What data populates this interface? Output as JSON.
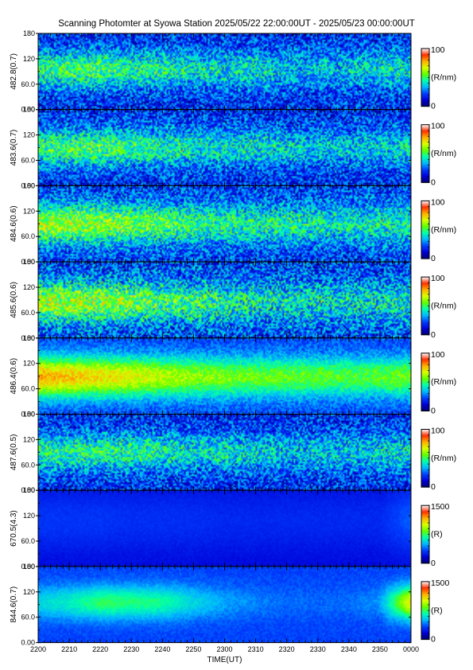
{
  "title": "Scanning Photomter at Syowa Station 2025/05/22 22:00:00UT - 2025/05/23 00:00:00UT",
  "colors": {
    "background": "#ffffff",
    "colormap": [
      "#000070",
      "#0000d8",
      "#0040ff",
      "#00b8ff",
      "#00ffb0",
      "#60ff00",
      "#d8ff00",
      "#ffb000",
      "#ff3000",
      "#ffffff"
    ]
  },
  "chart_data": {
    "type": "heatmap",
    "xlabel": "TIME(UT)",
    "x_ticks": [
      "2200",
      "2210",
      "2220",
      "2230",
      "2240",
      "2250",
      "2300",
      "2310",
      "2320",
      "2330",
      "2340",
      "2350",
      "0000"
    ],
    "panels": [
      {
        "ylabel": "482.8(0.7)",
        "y_ticks": [
          "0.00",
          "60.0",
          "120",
          "180"
        ],
        "ylim": [
          0,
          180
        ],
        "colorbar": {
          "min_label": "0",
          "max_label": "100",
          "unit": "(R/nm)"
        },
        "peak_elevation": 95,
        "band_width": 45,
        "trend": [
          0.45,
          0.5,
          0.5,
          0.45,
          0.45,
          0.4,
          0.4,
          0.4,
          0.35,
          0.35,
          0.35,
          0.4,
          0.4
        ],
        "noise": 0.35,
        "baseline": 0.18
      },
      {
        "ylabel": "483.6(0.7)",
        "y_ticks": [
          "0.00",
          "60.0",
          "120",
          "180"
        ],
        "ylim": [
          0,
          180
        ],
        "colorbar": {
          "min_label": "0",
          "max_label": "100",
          "unit": "(R/nm)"
        },
        "peak_elevation": 90,
        "band_width": 45,
        "trend": [
          0.48,
          0.5,
          0.5,
          0.48,
          0.45,
          0.42,
          0.4,
          0.4,
          0.38,
          0.36,
          0.36,
          0.38,
          0.4
        ],
        "noise": 0.35,
        "baseline": 0.18
      },
      {
        "ylabel": "484.6(0.6)",
        "y_ticks": [
          "0.00",
          "60.0",
          "120",
          "180"
        ],
        "ylim": [
          0,
          180
        ],
        "colorbar": {
          "min_label": "0",
          "max_label": "100",
          "unit": "(R/nm)"
        },
        "peak_elevation": 90,
        "band_width": 48,
        "trend": [
          0.6,
          0.6,
          0.58,
          0.55,
          0.52,
          0.48,
          0.46,
          0.44,
          0.44,
          0.42,
          0.42,
          0.42,
          0.45
        ],
        "noise": 0.35,
        "baseline": 0.2
      },
      {
        "ylabel": "485.6(0.6)",
        "y_ticks": [
          "0.00",
          "60.0",
          "120",
          "180"
        ],
        "ylim": [
          0,
          180
        ],
        "colorbar": {
          "min_label": "0",
          "max_label": "100",
          "unit": "(R/nm)"
        },
        "peak_elevation": 85,
        "band_width": 50,
        "trend": [
          0.62,
          0.6,
          0.58,
          0.55,
          0.5,
          0.48,
          0.45,
          0.42,
          0.4,
          0.4,
          0.4,
          0.4,
          0.42
        ],
        "noise": 0.4,
        "baseline": 0.2
      },
      {
        "ylabel": "486.4(0.6)",
        "y_ticks": [
          "0.00",
          "60.0",
          "120",
          "180"
        ],
        "ylim": [
          0,
          180
        ],
        "colorbar": {
          "min_label": "0",
          "max_label": "100",
          "unit": "(R/nm)"
        },
        "peak_elevation": 88,
        "band_width": 48,
        "trend": [
          0.78,
          0.75,
          0.72,
          0.68,
          0.64,
          0.6,
          0.58,
          0.56,
          0.55,
          0.54,
          0.53,
          0.54,
          0.56
        ],
        "noise": 0.15,
        "baseline": 0.22
      },
      {
        "ylabel": "487.6(0.5)",
        "y_ticks": [
          "0.00",
          "60.0",
          "120",
          "180"
        ],
        "ylim": [
          0,
          180
        ],
        "colorbar": {
          "min_label": "0",
          "max_label": "100",
          "unit": "(R/nm)"
        },
        "peak_elevation": 90,
        "band_width": 45,
        "trend": [
          0.45,
          0.46,
          0.46,
          0.45,
          0.43,
          0.4,
          0.4,
          0.38,
          0.36,
          0.36,
          0.36,
          0.38,
          0.4
        ],
        "noise": 0.35,
        "baseline": 0.18
      },
      {
        "ylabel": "670.5(4.3)",
        "y_ticks": [
          "0.00",
          "60.0",
          "120",
          "180"
        ],
        "ylim": [
          0,
          180
        ],
        "colorbar": {
          "min_label": "0",
          "max_label": "1500",
          "unit": "(R)"
        },
        "peak_elevation": 110,
        "band_width": 80,
        "trend": [
          0.2,
          0.2,
          0.2,
          0.19,
          0.19,
          0.19,
          0.18,
          0.18,
          0.18,
          0.18,
          0.18,
          0.18,
          0.25
        ],
        "noise": 0.03,
        "baseline": 0.12
      },
      {
        "ylabel": "844.6(0.7)",
        "y_ticks": [
          "0.00",
          "60.0",
          "120",
          "180"
        ],
        "ylim": [
          0,
          180
        ],
        "colorbar": {
          "min_label": "0",
          "max_label": "1500",
          "unit": "(R)"
        },
        "peak_elevation": 95,
        "band_width": 40,
        "trend": [
          0.38,
          0.42,
          0.5,
          0.48,
          0.46,
          0.38,
          0.32,
          0.28,
          0.26,
          0.26,
          0.26,
          0.3,
          0.7
        ],
        "noise": 0.06,
        "baseline": 0.22
      }
    ]
  }
}
